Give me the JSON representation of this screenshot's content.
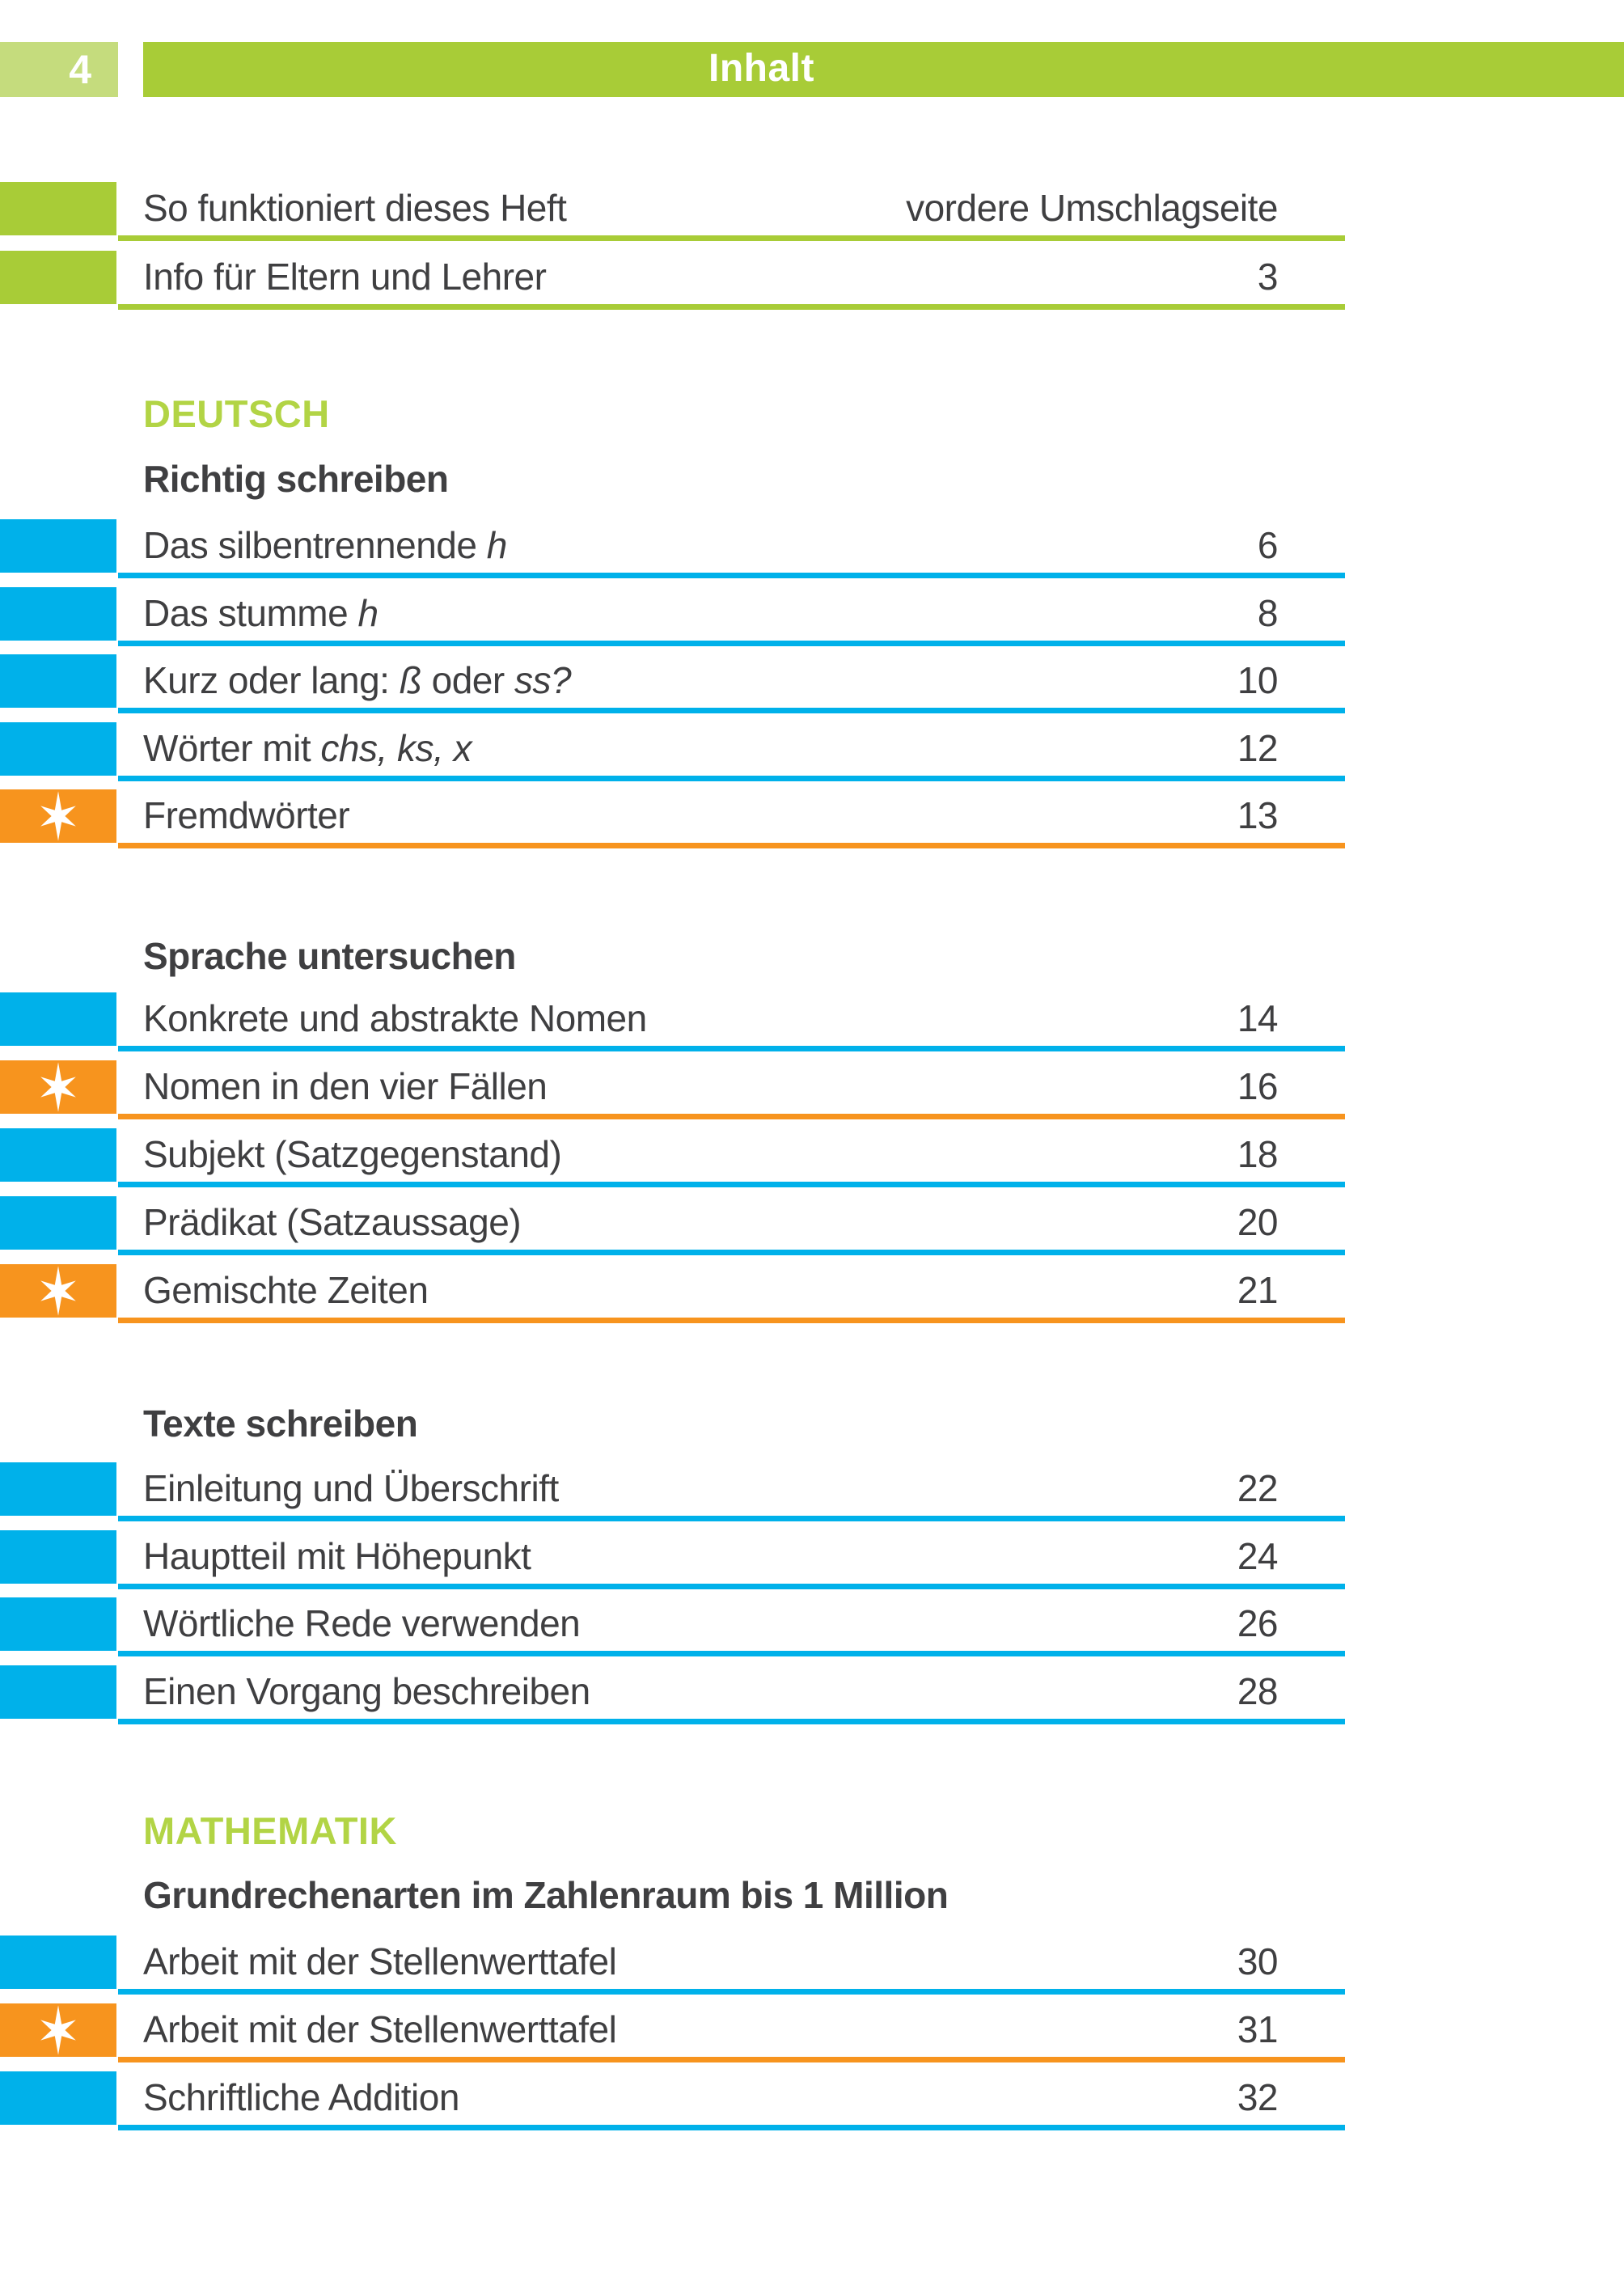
{
  "header": {
    "page_number": "4",
    "title": "Inhalt"
  },
  "colors": {
    "green": "#a8cc37",
    "green_light": "#c5dc7d",
    "green_heading": "#b2d445",
    "blue": "#00b1ea",
    "orange": "#f7941e",
    "text": "#3f3f41",
    "white": "#ffffff"
  },
  "icons": {
    "star": "six-point-star"
  },
  "sections": [
    {
      "subject": null,
      "topic": null,
      "entries": [
        {
          "title": [
            {
              "text": "So funktioniert dieses Heft"
            }
          ],
          "page": "vordere Umschlagseite",
          "color": "green",
          "star": false
        },
        {
          "title": [
            {
              "text": "Info für Eltern und Lehrer"
            }
          ],
          "page": "3",
          "color": "green",
          "star": false
        }
      ]
    },
    {
      "subject": "DEUTSCH",
      "topic": "Richtig schreiben",
      "entries": [
        {
          "title": [
            {
              "text": "Das silbentrennende "
            },
            {
              "text": "h",
              "italic": true
            }
          ],
          "page": "6",
          "color": "blue",
          "star": false
        },
        {
          "title": [
            {
              "text": "Das stumme "
            },
            {
              "text": "h",
              "italic": true
            }
          ],
          "page": "8",
          "color": "blue",
          "star": false
        },
        {
          "title": [
            {
              "text": "Kurz oder lang: "
            },
            {
              "text": "ß",
              "italic": true
            },
            {
              "text": " oder "
            },
            {
              "text": "ss?",
              "italic": true
            }
          ],
          "page": "10",
          "color": "blue",
          "star": false
        },
        {
          "title": [
            {
              "text": "Wörter mit "
            },
            {
              "text": "chs, ks, x",
              "italic": true
            }
          ],
          "page": "12",
          "color": "blue",
          "star": false
        },
        {
          "title": [
            {
              "text": "Fremdwörter"
            }
          ],
          "page": "13",
          "color": "orange",
          "star": true
        }
      ]
    },
    {
      "subject": null,
      "topic": "Sprache untersuchen",
      "entries": [
        {
          "title": [
            {
              "text": "Konkrete und abstrakte Nomen"
            }
          ],
          "page": "14",
          "color": "blue",
          "star": false
        },
        {
          "title": [
            {
              "text": "Nomen in den vier Fällen"
            }
          ],
          "page": "16",
          "color": "orange",
          "star": true
        },
        {
          "title": [
            {
              "text": "Subjekt (Satzgegenstand)"
            }
          ],
          "page": "18",
          "color": "blue",
          "star": false
        },
        {
          "title": [
            {
              "text": "Prädikat (Satzaussage)"
            }
          ],
          "page": "20",
          "color": "blue",
          "star": false
        },
        {
          "title": [
            {
              "text": "Gemischte Zeiten"
            }
          ],
          "page": "21",
          "color": "orange",
          "star": true
        }
      ]
    },
    {
      "subject": null,
      "topic": "Texte schreiben",
      "entries": [
        {
          "title": [
            {
              "text": "Einleitung und Überschrift"
            }
          ],
          "page": "22",
          "color": "blue",
          "star": false
        },
        {
          "title": [
            {
              "text": "Hauptteil mit Höhepunkt"
            }
          ],
          "page": "24",
          "color": "blue",
          "star": false
        },
        {
          "title": [
            {
              "text": "Wörtliche Rede verwenden"
            }
          ],
          "page": "26",
          "color": "blue",
          "star": false
        },
        {
          "title": [
            {
              "text": "Einen Vorgang beschreiben"
            }
          ],
          "page": "28",
          "color": "blue",
          "star": false
        }
      ]
    },
    {
      "subject": "MATHEMATIK",
      "topic": "Grundrechenarten im Zahlenraum bis 1 Million",
      "entries": [
        {
          "title": [
            {
              "text": "Arbeit mit der Stellenwerttafel"
            }
          ],
          "page": "30",
          "color": "blue",
          "star": false
        },
        {
          "title": [
            {
              "text": "Arbeit mit der Stellenwerttafel"
            }
          ],
          "page": "31",
          "color": "orange",
          "star": true
        },
        {
          "title": [
            {
              "text": "Schriftliche Addition"
            }
          ],
          "page": "32",
          "color": "blue",
          "star": false
        }
      ]
    }
  ]
}
